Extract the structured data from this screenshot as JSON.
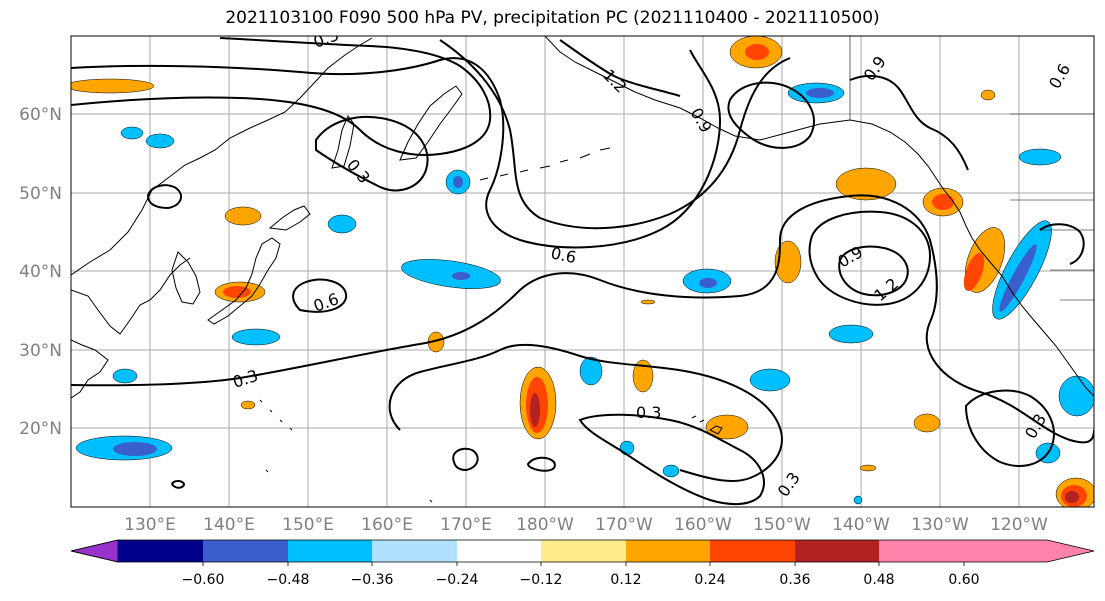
{
  "title": "2021103100 F090 500 hPa PV, precipitation PC (2021110400 - 2021110500)",
  "map": {
    "lon_labels": [
      "130°E",
      "140°E",
      "150°E",
      "160°E",
      "170°E",
      "180°W",
      "170°W",
      "160°W",
      "150°W",
      "140°W",
      "130°W",
      "120°W"
    ],
    "lat_labels": [
      "60°N",
      "50°N",
      "40°N",
      "30°N",
      "20°N"
    ],
    "pv_contour_labels": [
      "0.3",
      "0.6",
      "0.6",
      "0.3",
      "0.3",
      "0.9",
      "1.2",
      "0.3",
      "0.3",
      "0.9",
      "1.2",
      "0.9",
      "0.3",
      "0.6"
    ]
  },
  "colorbar": {
    "tick_labels": [
      "−0.60",
      "−0.48",
      "−0.36",
      "−0.24",
      "−0.12",
      "0.12",
      "0.24",
      "0.36",
      "0.48",
      "0.60"
    ],
    "colors": [
      "#9932cc",
      "#00008b",
      "#3a5fcd",
      "#00bfff",
      "#b0e2ff",
      "#ffffff",
      "#ffec8b",
      "#ffa500",
      "#ff4500",
      "#b22222",
      "#ff82ab"
    ]
  }
}
